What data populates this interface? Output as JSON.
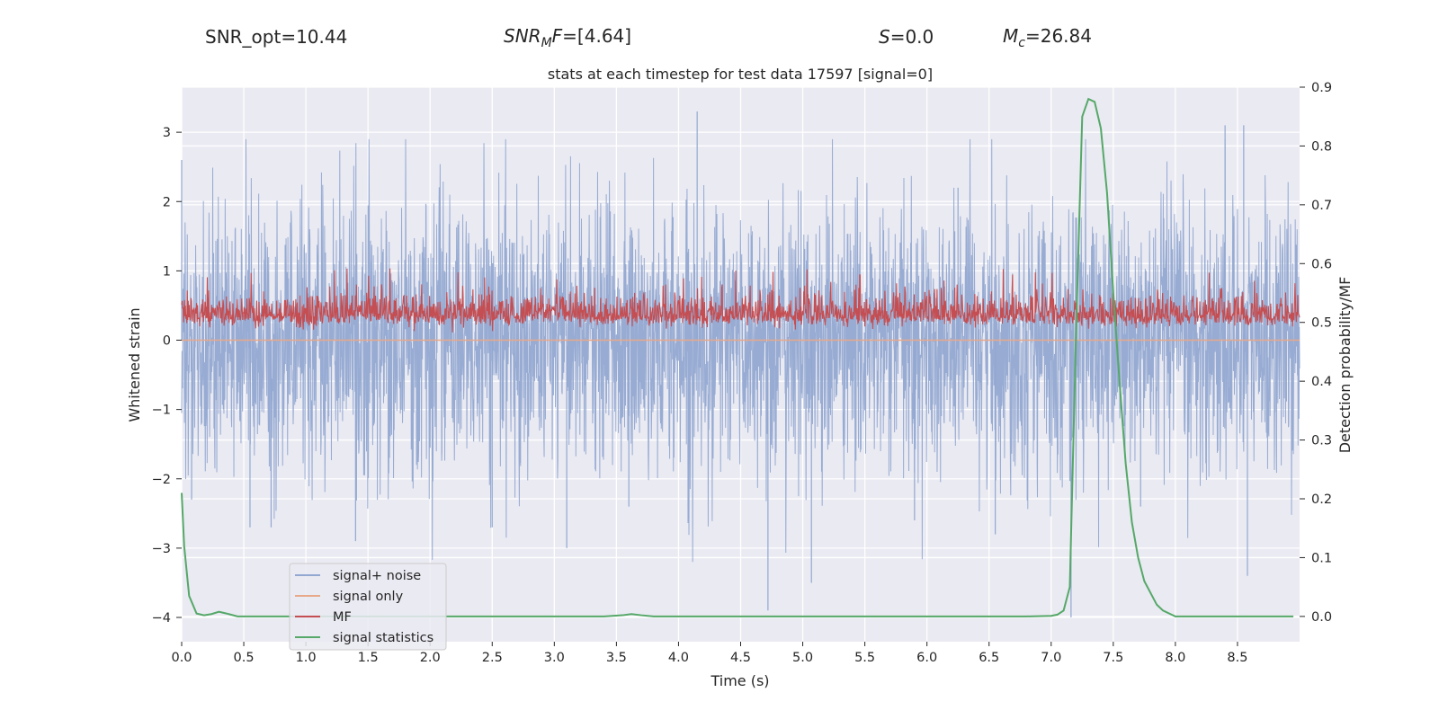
{
  "header": {
    "snr_opt": "SNR_opt=10.44",
    "snr_mf_base": "SNR",
    "snr_mf_sub": "M",
    "snr_mf_rest": "F=[4.64]",
    "s_sym": "S",
    "s_rest": "=0.0",
    "mc_sym": "M",
    "mc_sub": "c",
    "mc_rest": "=26.84"
  },
  "chart_data": {
    "type": "line",
    "title": "stats at each timestep for test data 17597 [signal=0]",
    "xlabel": "Time (s)",
    "ylabel": "Whitened strain",
    "ylabel_right": "Detection probability/MF",
    "xlim": [
      0,
      9.0
    ],
    "ylim": [
      -4.35,
      3.65
    ],
    "ylim_right": [
      -0.043,
      0.9
    ],
    "x_ticks": [
      "0.0",
      "0.5",
      "1.0",
      "1.5",
      "2.0",
      "2.5",
      "3.0",
      "3.5",
      "4.0",
      "4.5",
      "5.0",
      "5.5",
      "6.0",
      "6.5",
      "7.0",
      "7.5",
      "8.0",
      "8.5"
    ],
    "y_ticks": [
      "−4",
      "−3",
      "−2",
      "−1",
      "0",
      "1",
      "2",
      "3"
    ],
    "y_ticks_right": [
      "0.0",
      "0.1",
      "0.2",
      "0.3",
      "0.4",
      "0.5",
      "0.6",
      "0.7",
      "0.8",
      "0.9"
    ],
    "legend": {
      "placement": "lower-left",
      "entries": [
        "signal+ noise",
        "signal only",
        "MF",
        "signal statistics"
      ]
    },
    "colors": {
      "noise": "#92a8d1",
      "signal": "#e8a88a",
      "mf": "#c44e52",
      "stat": "#55a868",
      "bg": "#eaeaf2",
      "grid": "#ffffff"
    },
    "series": [
      {
        "name": "signal+ noise",
        "axis": "left",
        "description_of_values": "dense white-noise strain, approx. Gaussian, std ~0.95",
        "extremes": [
          [
            0.0,
            2.6
          ],
          [
            0.08,
            -2.3
          ],
          [
            0.55,
            -2.7
          ],
          [
            0.72,
            -2.7
          ],
          [
            1.4,
            -2.9
          ],
          [
            2.5,
            -2.7
          ],
          [
            3.1,
            -3.0
          ],
          [
            3.6,
            -2.4
          ],
          [
            4.15,
            3.3
          ],
          [
            4.72,
            -3.9
          ],
          [
            5.07,
            -3.5
          ],
          [
            5.9,
            -2.6
          ],
          [
            6.25,
            2.2
          ],
          [
            6.55,
            -2.8
          ],
          [
            7.16,
            -4.0
          ],
          [
            7.72,
            -2.4
          ],
          [
            8.4,
            3.1
          ],
          [
            8.55,
            3.1
          ],
          [
            8.58,
            -3.4
          ]
        ]
      },
      {
        "name": "signal only",
        "axis": "left",
        "values_constant": 0.0
      },
      {
        "name": "MF",
        "axis": "right",
        "description_of_values": "matched-filter output fluctuating around 0.50, range ~0.48-0.60",
        "mean": 0.5
      },
      {
        "name": "signal statistics",
        "axis": "right",
        "x": [
          0.0,
          0.02,
          0.06,
          0.12,
          0.18,
          0.24,
          0.3,
          0.36,
          0.45,
          0.6,
          1.0,
          2.0,
          3.0,
          3.4,
          3.55,
          3.62,
          3.7,
          3.8,
          4.0,
          5.0,
          6.0,
          6.8,
          7.0,
          7.05,
          7.1,
          7.15,
          7.2,
          7.25,
          7.3,
          7.35,
          7.4,
          7.45,
          7.5,
          7.55,
          7.6,
          7.65,
          7.7,
          7.75,
          7.8,
          7.85,
          7.9,
          8.0,
          8.5,
          8.95
        ],
        "values": [
          0.21,
          0.12,
          0.035,
          0.005,
          0.002,
          0.004,
          0.008,
          0.005,
          0.0,
          0.0,
          0.0,
          0.0,
          0.0,
          0.0,
          0.002,
          0.004,
          0.002,
          0.0,
          0.0,
          0.0,
          0.0,
          0.0,
          0.001,
          0.003,
          0.01,
          0.05,
          0.48,
          0.85,
          0.88,
          0.875,
          0.83,
          0.72,
          0.55,
          0.4,
          0.26,
          0.16,
          0.1,
          0.06,
          0.04,
          0.02,
          0.01,
          0.0,
          0.0,
          0.0
        ]
      }
    ]
  }
}
